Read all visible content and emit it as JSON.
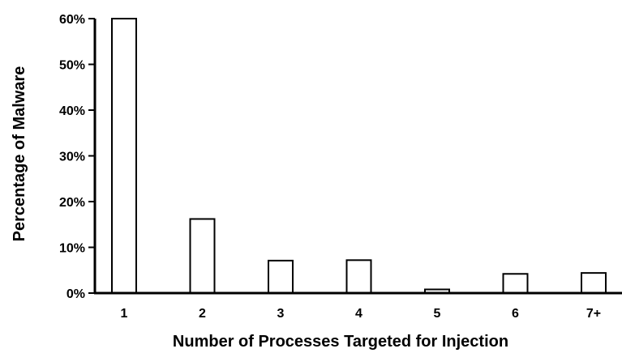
{
  "chart_data": {
    "type": "bar",
    "title": "",
    "xlabel": "Number of Processes Targeted for Injection",
    "ylabel": "Percentage of Malware",
    "categories": [
      "1",
      "2",
      "3",
      "4",
      "5",
      "6",
      "7+"
    ],
    "values": [
      60.0,
      16.2,
      7.1,
      7.2,
      0.8,
      4.2,
      4.4
    ],
    "ylim": [
      0,
      60
    ],
    "yticks": [
      0,
      10,
      20,
      30,
      40,
      50,
      60
    ],
    "ytick_labels": [
      "0%",
      "10%",
      "20%",
      "30%",
      "40%",
      "50%",
      "60%"
    ],
    "grid": false,
    "legend": "none",
    "colors": {
      "bar_fill": "#ffffff",
      "bar_stroke": "#000000",
      "axis": "#000000"
    }
  }
}
